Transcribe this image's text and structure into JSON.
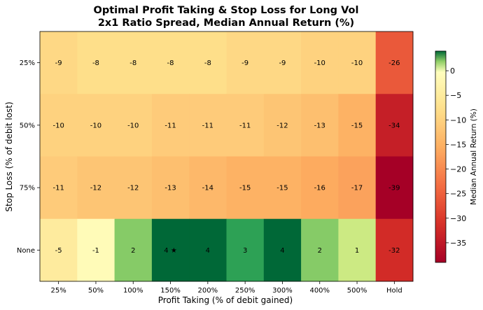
{
  "chart_data": {
    "type": "heatmap",
    "title": "Optimal Profit Taking & Stop Loss for Long Vol",
    "subtitle": "2x1 Ratio Spread, Median Annual Return (%)",
    "xlabel": "Profit Taking (% of debit gained)",
    "ylabel": "Stop Loss (% of debit lost)",
    "x_categories": [
      "25%",
      "50%",
      "100%",
      "150%",
      "200%",
      "250%",
      "300%",
      "400%",
      "500%",
      "Hold"
    ],
    "y_categories": [
      "25%",
      "50%",
      "75%",
      "None"
    ],
    "values": [
      [
        -9,
        -8,
        -8,
        -8,
        -8,
        -9,
        -9,
        -10,
        -10,
        -26
      ],
      [
        -10,
        -10,
        -10,
        -11,
        -11,
        -11,
        -12,
        -13,
        -15,
        -34
      ],
      [
        -11,
        -12,
        -12,
        -13,
        -14,
        -15,
        -15,
        -16,
        -17,
        -39
      ],
      [
        -5,
        -1,
        2,
        4,
        4,
        3,
        4,
        2,
        1,
        -32
      ]
    ],
    "best_marker": {
      "row": 3,
      "col": 3,
      "symbol": "★"
    },
    "colorbar": {
      "label": "Median Annual Return (%)",
      "min": -39,
      "max": 4,
      "center": 0,
      "ticks": [
        0,
        -5,
        -10,
        -15,
        -20,
        -25,
        -30,
        -35
      ],
      "tick_labels": [
        "0",
        "−5",
        "−10",
        "−15",
        "−20",
        "−25",
        "−30",
        "−35"
      ],
      "colormap": "RdYlGn"
    }
  }
}
